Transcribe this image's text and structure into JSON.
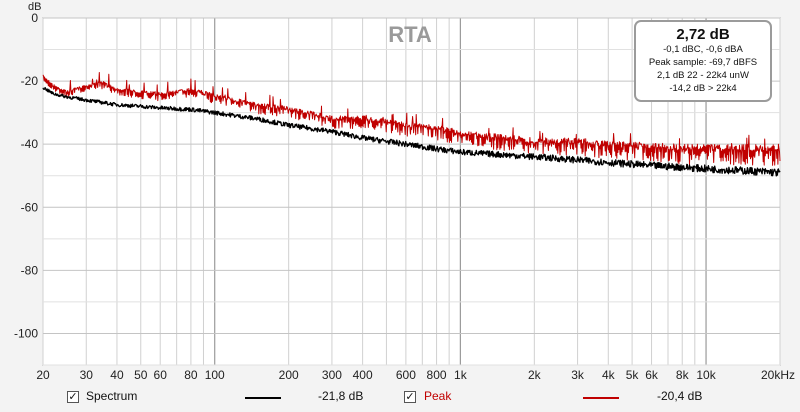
{
  "chart_data": {
    "type": "line",
    "title": "RTA",
    "yunit": "dB",
    "xscale": "log",
    "xlim": [
      20,
      20000
    ],
    "ylim": [
      -110,
      0
    ],
    "yticks": [
      0,
      -20,
      -40,
      -60,
      -80,
      -100
    ],
    "ytick_labels": [
      "0",
      "-20",
      "-40",
      "-60",
      "-80",
      "-100"
    ],
    "xticks": [
      20,
      30,
      40,
      50,
      60,
      80,
      100,
      200,
      300,
      400,
      600,
      800,
      1000,
      2000,
      3000,
      4000,
      5000,
      6000,
      8000,
      10000,
      20000
    ],
    "xtick_labels": [
      "20",
      "30",
      "40",
      "50",
      "60",
      "80",
      "100",
      "200",
      "300",
      "400",
      "600",
      "800",
      "1k",
      "2k",
      "3k",
      "4k",
      "5k",
      "6k",
      "8k",
      "10k",
      "20kHz"
    ],
    "grid": true,
    "series": [
      {
        "name": "Spectrum",
        "color": "#000000",
        "x": [
          20,
          22,
          25,
          30,
          40,
          50,
          60,
          80,
          100,
          150,
          200,
          300,
          400,
          600,
          800,
          1000,
          2000,
          3000,
          4000,
          6000,
          8000,
          10000,
          15000,
          20000
        ],
        "y": [
          -22,
          -24,
          -25,
          -26,
          -27.5,
          -28,
          -28.5,
          -29,
          -30,
          -32,
          -34,
          -36,
          -38,
          -40,
          -41.5,
          -42.5,
          -44,
          -45,
          -45.8,
          -46.8,
          -47.3,
          -47.8,
          -48.5,
          -49
        ]
      },
      {
        "name": "Peak",
        "color": "#c00000",
        "x": [
          20,
          22,
          25,
          30,
          35,
          40,
          50,
          60,
          80,
          100,
          150,
          200,
          300,
          400,
          600,
          800,
          1000,
          2000,
          3000,
          4000,
          6000,
          8000,
          10000,
          15000,
          20000
        ],
        "y": [
          -18,
          -21,
          -23,
          -21,
          -20,
          -22,
          -23,
          -23.5,
          -22,
          -24,
          -27,
          -28,
          -31,
          -31,
          -33,
          -34,
          -35.5,
          -38,
          -38,
          -39,
          -39.5,
          -40,
          -40,
          -40,
          -40
        ]
      }
    ]
  },
  "info_box": {
    "main": "2,72 dB",
    "lines": [
      "-0,1 dBC, -0,6 dBA",
      "Peak sample: -69,7 dBFS",
      "2,1 dB 22 - 22k4 unW",
      "-14,2 dB > 22k4"
    ]
  },
  "legend": {
    "items": [
      {
        "label": "Spectrum",
        "value": "-21,8 dB",
        "checked": true,
        "color": "#000000",
        "label_color": "#111111"
      },
      {
        "label": "Peak",
        "value": "-20,4 dB",
        "checked": true,
        "color": "#c00000",
        "label_color": "#c00000"
      }
    ]
  }
}
